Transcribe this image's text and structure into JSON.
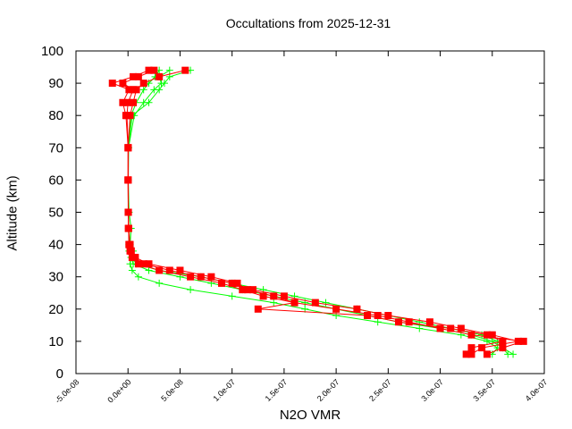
{
  "chart_data": {
    "type": "line",
    "title": "Occultations from 2025-12-31",
    "xlabel": "N2O VMR",
    "ylabel": "Altitude (km)",
    "xlim": [
      -5e-08,
      4e-07
    ],
    "ylim": [
      0,
      100
    ],
    "xticks": [
      "-5.0e-08",
      "0.0e+00",
      "5.0e-08",
      "1.0e-07",
      "1.5e-07",
      "2.0e-07",
      "2.5e-07",
      "3.0e-07",
      "3.5e-07",
      "4.0e-07"
    ],
    "yticks": [
      "0",
      "10",
      "20",
      "30",
      "40",
      "50",
      "60",
      "70",
      "80",
      "90",
      "100"
    ],
    "grid": false,
    "altitude": [
      6,
      8,
      10,
      12,
      14,
      16,
      18,
      20,
      22,
      24,
      26,
      28,
      30,
      32,
      34,
      36,
      38,
      40,
      45,
      50,
      60,
      70,
      80,
      84,
      88,
      90,
      92,
      94
    ],
    "series": [
      {
        "color": "#00ff00",
        "marker": "plus",
        "values": [
          3.65e-07,
          3.6e-07,
          3.5e-07,
          3.3e-07,
          3e-07,
          2.6e-07,
          2.3e-07,
          2e-07,
          1.7e-07,
          1.4e-07,
          1.1e-07,
          8e-08,
          5e-08,
          2e-08,
          5e-09,
          3e-09,
          2e-09,
          1e-09,
          5e-10,
          3e-10,
          2e-10,
          4e-10,
          4e-09,
          2e-08,
          3e-08,
          3.5e-08,
          4e-08,
          6e-08
        ]
      },
      {
        "color": "#00ff00",
        "marker": "plus",
        "values": [
          3.5e-07,
          3.55e-07,
          3.45e-07,
          3.2e-07,
          2.8e-07,
          2.4e-07,
          2e-07,
          1.7e-07,
          1.4e-07,
          1e-07,
          6e-08,
          3e-08,
          1e-08,
          4e-09,
          2e-09,
          3e-09,
          5e-09,
          2e-09,
          8e-10,
          4e-10,
          3e-10,
          5e-10,
          6e-09,
          1.5e-08,
          2.5e-08,
          3.2e-08,
          3e-08,
          4e-08
        ]
      },
      {
        "color": "#00ff00",
        "marker": "plus",
        "values": [
          3.7e-07,
          3.6e-07,
          3.55e-07,
          3.4e-07,
          3.1e-07,
          2.8e-07,
          2.5e-07,
          2.2e-07,
          1.9e-07,
          1.6e-07,
          1.3e-07,
          1e-07,
          7e-08,
          3e-08,
          8e-09,
          4e-09,
          1e-09,
          2e-09,
          3e-09,
          1e-09,
          2e-10,
          3e-10,
          3e-09,
          8e-09,
          1.5e-08,
          2e-08,
          2.6e-08,
          3e-08
        ]
      },
      {
        "color": "#ff0000",
        "marker": "square",
        "values": [
          3.3e-07,
          3.4e-07,
          3.75e-07,
          3.5e-07,
          3.2e-07,
          2.9e-07,
          2.5e-07,
          2.2e-07,
          1.8e-07,
          1.5e-07,
          1.2e-07,
          1e-07,
          7e-08,
          4e-08,
          1.5e-08,
          5e-09,
          3e-09,
          1e-09,
          5e-10,
          3e-10,
          1e-10,
          1e-10,
          -2e-09,
          -5e-09,
          1e-09,
          -1.5e-08,
          5e-09,
          2e-08
        ]
      },
      {
        "color": "#ff0000",
        "marker": "square",
        "values": [
          3.45e-07,
          3.6e-07,
          3.8e-07,
          3.3e-07,
          3e-07,
          2.7e-07,
          2.4e-07,
          2e-07,
          1.6e-07,
          1.3e-07,
          1.1e-07,
          9e-08,
          6e-08,
          3e-08,
          1e-08,
          4e-09,
          2e-09,
          1e-09,
          5e-10,
          2e-10,
          1e-10,
          2e-10,
          -1e-09,
          0,
          5e-09,
          -5e-09,
          1e-08,
          2.5e-08
        ]
      },
      {
        "color": "#ff0000",
        "marker": "square",
        "values": [
          3.25e-07,
          3.3e-07,
          3.6e-07,
          3.45e-07,
          3.1e-07,
          2.6e-07,
          2.3e-07,
          1.25e-07,
          1.6e-07,
          1.4e-07,
          1.15e-07,
          1.05e-07,
          8e-08,
          5e-08,
          2e-08,
          7e-09,
          3e-09,
          2e-09,
          5e-10,
          3e-10,
          1e-10,
          1e-10,
          2e-09,
          5e-09,
          8e-09,
          1.5e-08,
          3e-08,
          5.5e-08
        ]
      }
    ]
  }
}
